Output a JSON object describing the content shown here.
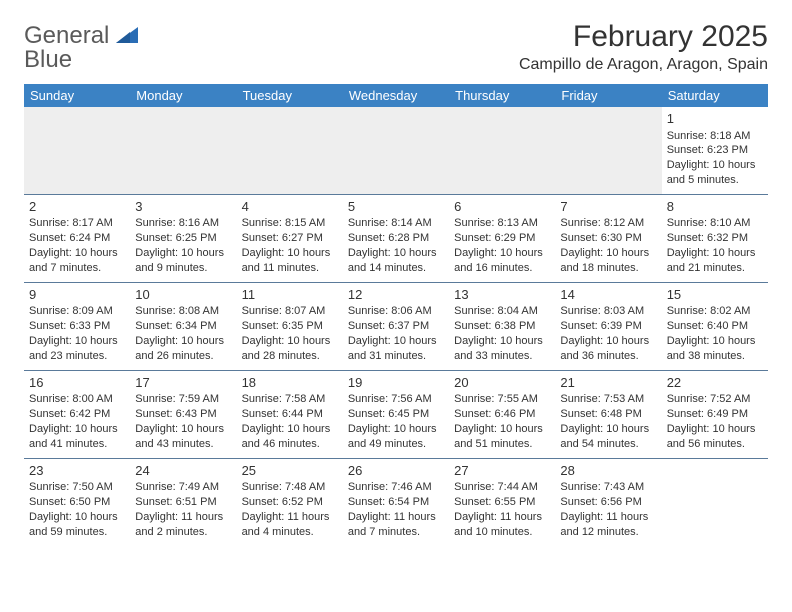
{
  "logo": {
    "word1": "General",
    "word2": "Blue"
  },
  "title": "February 2025",
  "location": "Campillo de Aragon, Aragon, Spain",
  "colors": {
    "header_bg": "#3b82c4",
    "header_fg": "#ffffff",
    "border": "#5a7a9a",
    "grey_row": "#eeeeee",
    "text": "#333333",
    "logo_grey": "#5a5a5a",
    "logo_blue": "#2a6db5"
  },
  "weekdays": [
    "Sunday",
    "Monday",
    "Tuesday",
    "Wednesday",
    "Thursday",
    "Friday",
    "Saturday"
  ],
  "layout": {
    "first_day_column": 6,
    "days_in_month": 28,
    "rows": 5,
    "cols": 7
  },
  "days": {
    "1": {
      "sunrise": "8:18 AM",
      "sunset": "6:23 PM",
      "daylight": "10 hours and 5 minutes."
    },
    "2": {
      "sunrise": "8:17 AM",
      "sunset": "6:24 PM",
      "daylight": "10 hours and 7 minutes."
    },
    "3": {
      "sunrise": "8:16 AM",
      "sunset": "6:25 PM",
      "daylight": "10 hours and 9 minutes."
    },
    "4": {
      "sunrise": "8:15 AM",
      "sunset": "6:27 PM",
      "daylight": "10 hours and 11 minutes."
    },
    "5": {
      "sunrise": "8:14 AM",
      "sunset": "6:28 PM",
      "daylight": "10 hours and 14 minutes."
    },
    "6": {
      "sunrise": "8:13 AM",
      "sunset": "6:29 PM",
      "daylight": "10 hours and 16 minutes."
    },
    "7": {
      "sunrise": "8:12 AM",
      "sunset": "6:30 PM",
      "daylight": "10 hours and 18 minutes."
    },
    "8": {
      "sunrise": "8:10 AM",
      "sunset": "6:32 PM",
      "daylight": "10 hours and 21 minutes."
    },
    "9": {
      "sunrise": "8:09 AM",
      "sunset": "6:33 PM",
      "daylight": "10 hours and 23 minutes."
    },
    "10": {
      "sunrise": "8:08 AM",
      "sunset": "6:34 PM",
      "daylight": "10 hours and 26 minutes."
    },
    "11": {
      "sunrise": "8:07 AM",
      "sunset": "6:35 PM",
      "daylight": "10 hours and 28 minutes."
    },
    "12": {
      "sunrise": "8:06 AM",
      "sunset": "6:37 PM",
      "daylight": "10 hours and 31 minutes."
    },
    "13": {
      "sunrise": "8:04 AM",
      "sunset": "6:38 PM",
      "daylight": "10 hours and 33 minutes."
    },
    "14": {
      "sunrise": "8:03 AM",
      "sunset": "6:39 PM",
      "daylight": "10 hours and 36 minutes."
    },
    "15": {
      "sunrise": "8:02 AM",
      "sunset": "6:40 PM",
      "daylight": "10 hours and 38 minutes."
    },
    "16": {
      "sunrise": "8:00 AM",
      "sunset": "6:42 PM",
      "daylight": "10 hours and 41 minutes."
    },
    "17": {
      "sunrise": "7:59 AM",
      "sunset": "6:43 PM",
      "daylight": "10 hours and 43 minutes."
    },
    "18": {
      "sunrise": "7:58 AM",
      "sunset": "6:44 PM",
      "daylight": "10 hours and 46 minutes."
    },
    "19": {
      "sunrise": "7:56 AM",
      "sunset": "6:45 PM",
      "daylight": "10 hours and 49 minutes."
    },
    "20": {
      "sunrise": "7:55 AM",
      "sunset": "6:46 PM",
      "daylight": "10 hours and 51 minutes."
    },
    "21": {
      "sunrise": "7:53 AM",
      "sunset": "6:48 PM",
      "daylight": "10 hours and 54 minutes."
    },
    "22": {
      "sunrise": "7:52 AM",
      "sunset": "6:49 PM",
      "daylight": "10 hours and 56 minutes."
    },
    "23": {
      "sunrise": "7:50 AM",
      "sunset": "6:50 PM",
      "daylight": "10 hours and 59 minutes."
    },
    "24": {
      "sunrise": "7:49 AM",
      "sunset": "6:51 PM",
      "daylight": "11 hours and 2 minutes."
    },
    "25": {
      "sunrise": "7:48 AM",
      "sunset": "6:52 PM",
      "daylight": "11 hours and 4 minutes."
    },
    "26": {
      "sunrise": "7:46 AM",
      "sunset": "6:54 PM",
      "daylight": "11 hours and 7 minutes."
    },
    "27": {
      "sunrise": "7:44 AM",
      "sunset": "6:55 PM",
      "daylight": "11 hours and 10 minutes."
    },
    "28": {
      "sunrise": "7:43 AM",
      "sunset": "6:56 PM",
      "daylight": "11 hours and 12 minutes."
    }
  },
  "labels": {
    "sunrise": "Sunrise: ",
    "sunset": "Sunset: ",
    "daylight": "Daylight: "
  }
}
